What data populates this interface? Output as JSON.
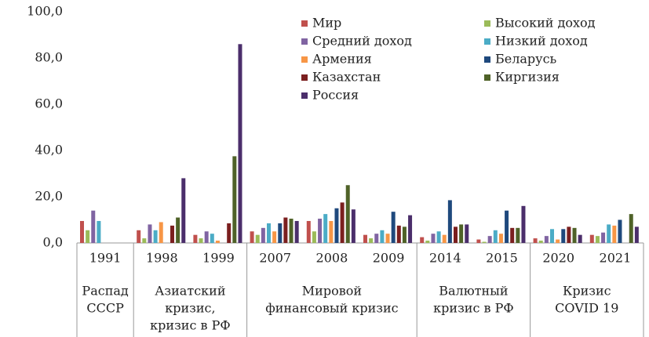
{
  "chart_data": {
    "type": "bar",
    "groups": [
      {
        "label": [
          "Распад",
          "СССР"
        ],
        "categories": [
          "1991"
        ]
      },
      {
        "label": [
          "Азиатский",
          "кризис,",
          "кризис в РФ"
        ],
        "categories": [
          "1998",
          "1999"
        ]
      },
      {
        "label": [
          "Мировой",
          "финансовый кризис"
        ],
        "categories": [
          "2007",
          "2008",
          "2009"
        ]
      },
      {
        "label": [
          "Валютный",
          "кризис в РФ"
        ],
        "categories": [
          "2014",
          "2015"
        ]
      },
      {
        "label": [
          "Кризис",
          "COVID 19"
        ],
        "categories": [
          "2020",
          "2021"
        ]
      }
    ],
    "series": [
      {
        "name": "Мир",
        "color": "#c0504d",
        "values": [
          9.5,
          5.5,
          3.5,
          5,
          9.5,
          3.5,
          2.5,
          1.5,
          2,
          3.5
        ]
      },
      {
        "name": "Высокий доход",
        "color": "#9bbb59",
        "values": [
          5.5,
          2,
          2,
          3.5,
          5,
          2,
          1,
          0.5,
          1,
          3
        ]
      },
      {
        "name": "Средний доход",
        "color": "#8064a2",
        "values": [
          14,
          8,
          5,
          6.5,
          10.5,
          4,
          4,
          3,
          3,
          4.5
        ]
      },
      {
        "name": "Низкий доход",
        "color": "#4bacc6",
        "values": [
          9.5,
          5.5,
          4,
          8.5,
          12.5,
          5.5,
          5,
          5.5,
          6,
          8
        ]
      },
      {
        "name": "Армения",
        "color": "#f79646",
        "values": [
          null,
          9,
          1,
          5,
          9.5,
          4,
          3.5,
          4,
          1.5,
          7.5
        ]
      },
      {
        "name": "Беларусь",
        "color": "#1f497d",
        "values": [
          null,
          null,
          null,
          8.5,
          15,
          13.5,
          18.5,
          14,
          6,
          10
        ]
      },
      {
        "name": "Казахстан",
        "color": "#7b1f1f",
        "values": [
          null,
          7.5,
          8.5,
          11,
          17.5,
          7.5,
          7,
          6.5,
          7,
          null
        ]
      },
      {
        "name": "Киргизия",
        "color": "#4f6228",
        "values": [
          null,
          11,
          37.5,
          10.5,
          25,
          7,
          8,
          6.5,
          6.5,
          12.5
        ]
      },
      {
        "name": "Россия",
        "color": "#4b2e6b",
        "values": [
          null,
          28,
          86,
          9.5,
          14.5,
          12,
          8,
          16,
          3.5,
          7
        ]
      }
    ],
    "ylim": [
      0,
      100
    ],
    "yticks": [
      {
        "value": 0,
        "label": "0,0"
      },
      {
        "value": 20,
        "label": "20,0"
      },
      {
        "value": 40,
        "label": "40,0"
      },
      {
        "value": 60,
        "label": "60,0"
      },
      {
        "value": 80,
        "label": "80,0"
      },
      {
        "value": 100,
        "label": "100,0"
      }
    ]
  }
}
